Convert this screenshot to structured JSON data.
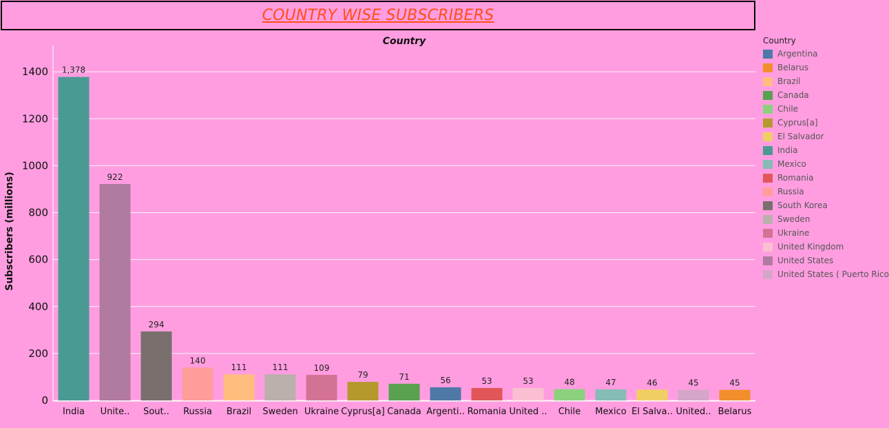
{
  "title": "COUNTRY WISE SUBSCRIBERS",
  "colors": {
    "background": "#ff9de0",
    "title": "#ff4f1a"
  },
  "chart_data": {
    "type": "bar",
    "title": "Country",
    "xlabel": "",
    "ylabel": "Subscribers (millions)",
    "ylim": [
      0,
      1500
    ],
    "yticks": [
      0,
      200,
      400,
      600,
      800,
      1000,
      1200,
      1400
    ],
    "grid": true,
    "legend_position": "right",
    "categories": [
      "India",
      "Unite..",
      "Sout..",
      "Russia",
      "Brazil",
      "Sweden",
      "Ukraine",
      "Cyprus[a]",
      "Canada",
      "Argenti..",
      "Romania",
      "United ..",
      "Chile",
      "Mexico",
      "El Salva..",
      "United..",
      "Belarus"
    ],
    "values": [
      1378,
      922,
      294,
      140,
      111,
      111,
      109,
      79,
      71,
      56,
      53,
      53,
      48,
      47,
      46,
      45,
      45
    ],
    "value_labels": [
      "1,378",
      "922",
      "294",
      "140",
      "111",
      "111",
      "109",
      "79",
      "71",
      "56",
      "53",
      "53",
      "48",
      "47",
      "46",
      "45",
      "45"
    ],
    "bar_colors": [
      "#4a9a94",
      "#b07aa1",
      "#79706e",
      "#ff9d9a",
      "#ffbe7d",
      "#bab0ac",
      "#d37295",
      "#b6992d",
      "#59a14f",
      "#4e79a7",
      "#e15759",
      "#fabfd2",
      "#8cd17d",
      "#86bcb6",
      "#f1ce63",
      "#d4a6c8",
      "#f28e2b"
    ]
  },
  "legend": {
    "title": "Country",
    "items": [
      {
        "label": "Argentina",
        "color": "#4e79a7"
      },
      {
        "label": "Belarus",
        "color": "#f28e2b"
      },
      {
        "label": "Brazil",
        "color": "#ffbe7d"
      },
      {
        "label": "Canada",
        "color": "#59a14f"
      },
      {
        "label": "Chile",
        "color": "#8cd17d"
      },
      {
        "label": "Cyprus[a]",
        "color": "#b6992d"
      },
      {
        "label": "El Salvador",
        "color": "#f1ce63"
      },
      {
        "label": "India",
        "color": "#4a9a94"
      },
      {
        "label": "Mexico",
        "color": "#86bcb6"
      },
      {
        "label": "Romania",
        "color": "#e15759"
      },
      {
        "label": "Russia",
        "color": "#ff9d9a"
      },
      {
        "label": "South Korea",
        "color": "#79706e"
      },
      {
        "label": "Sweden",
        "color": "#bab0ac"
      },
      {
        "label": "Ukraine",
        "color": "#d37295"
      },
      {
        "label": "United Kingdom",
        "color": "#fabfd2"
      },
      {
        "label": "United States",
        "color": "#b07aa1"
      },
      {
        "label": "United States ( Puerto Rico)",
        "color": "#d4a6c8"
      }
    ]
  }
}
